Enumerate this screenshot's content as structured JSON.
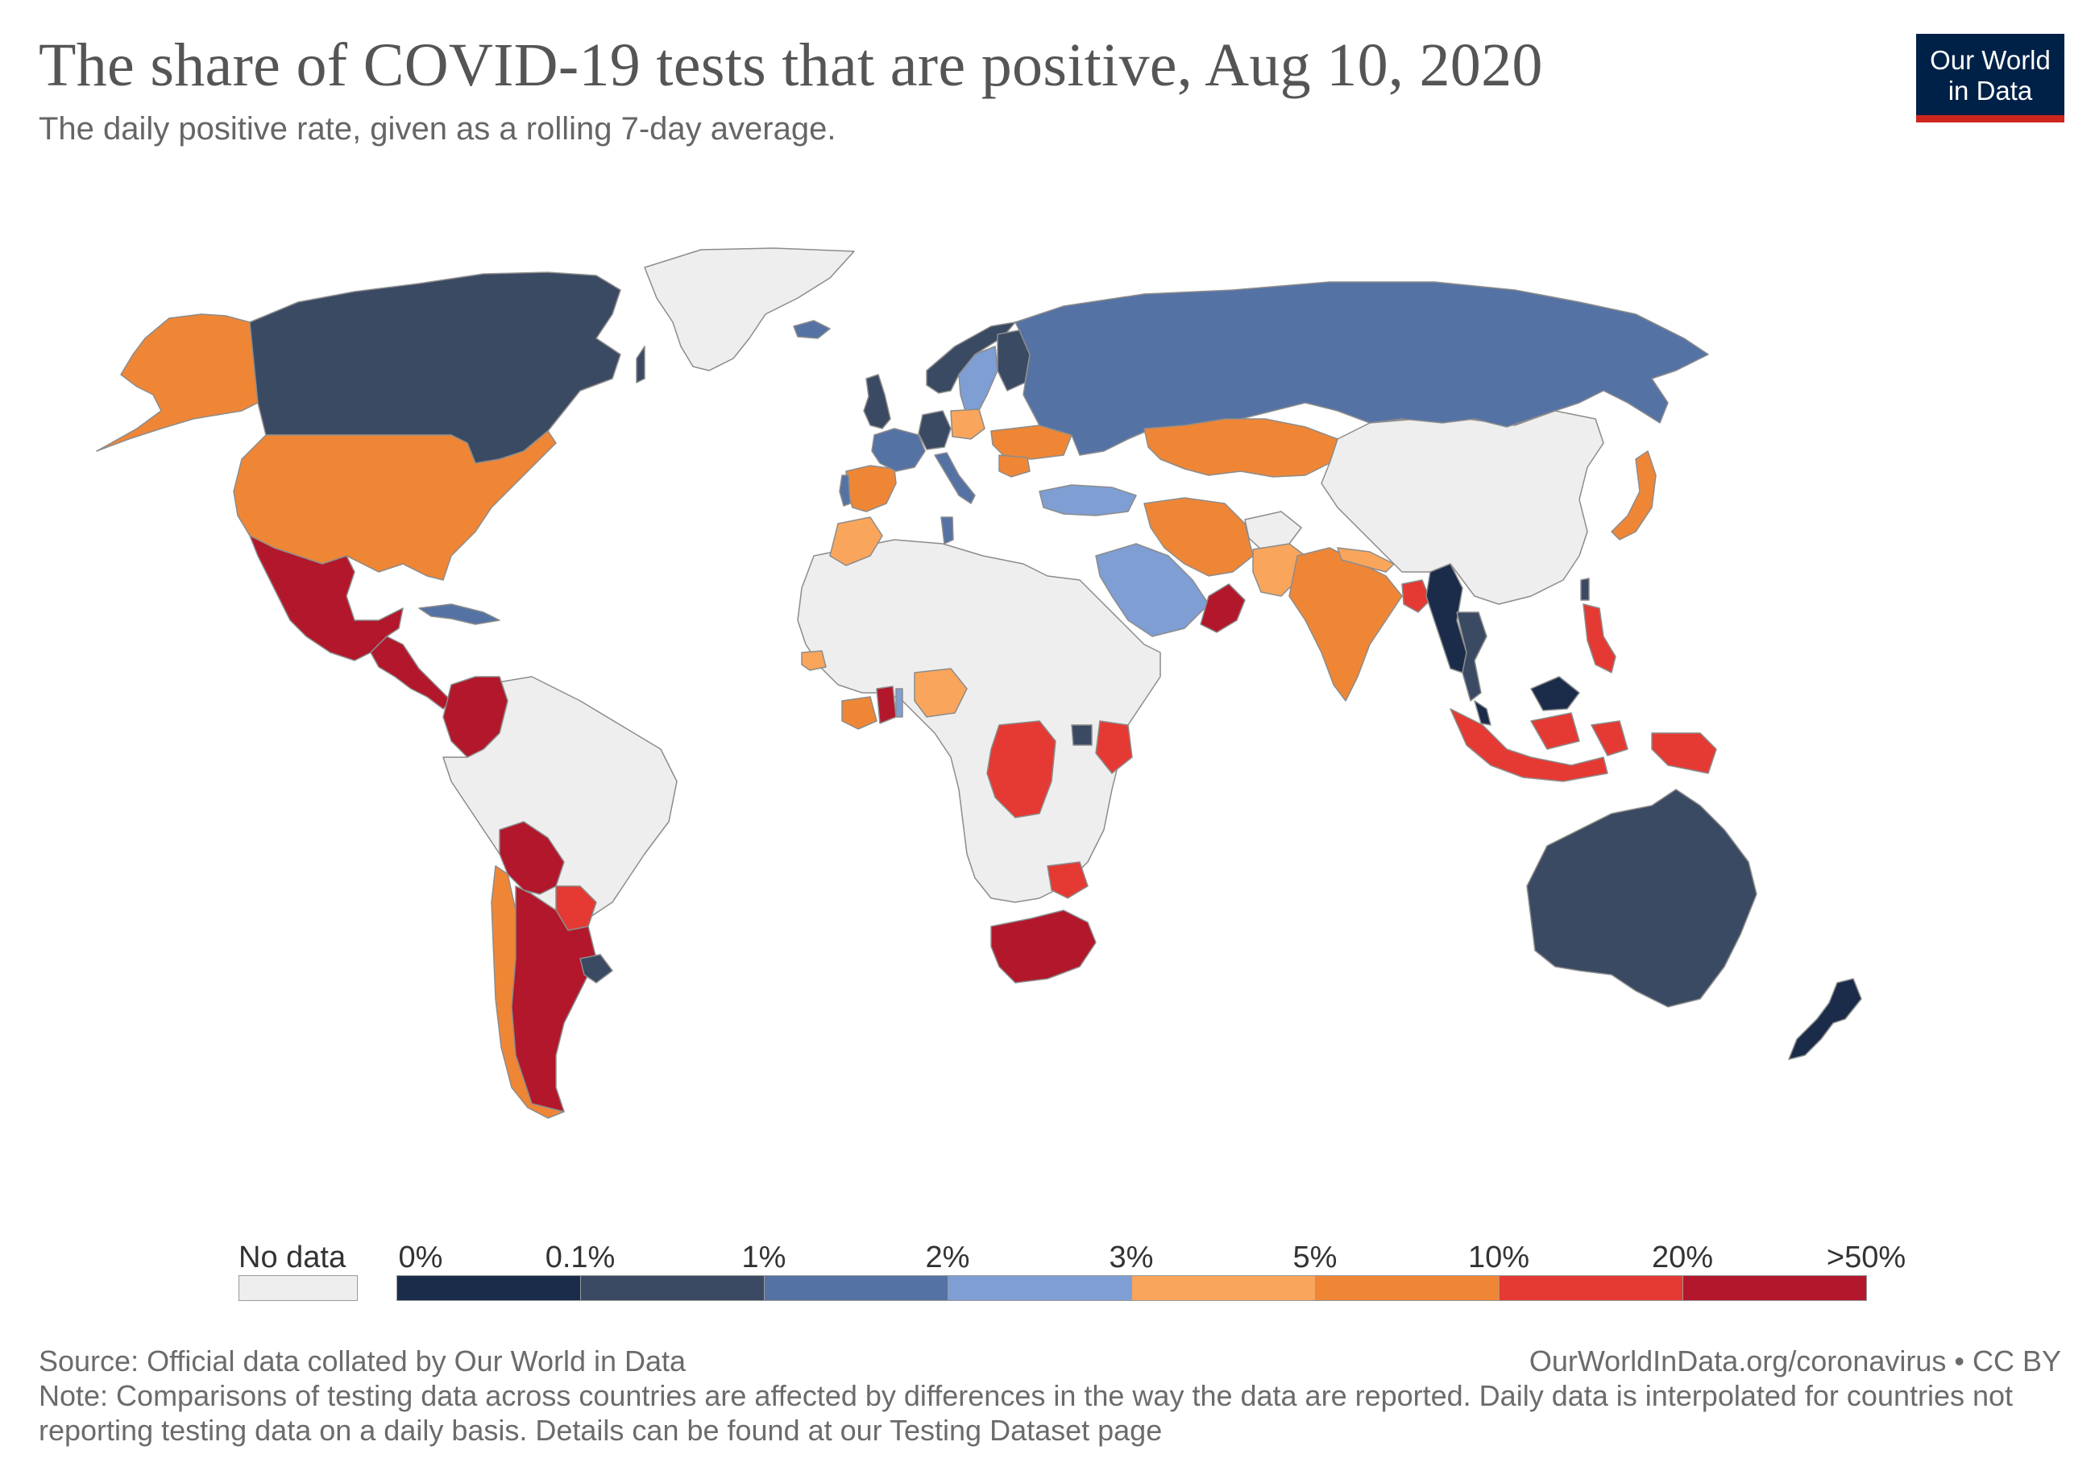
{
  "title": "The share of COVID-19 tests that are positive, Aug 10, 2020",
  "subtitle": "The daily positive rate, given as a rolling 7-day average.",
  "logo": {
    "line1": "Our World",
    "line2": "in Data"
  },
  "colors": {
    "no_data": "#eeeeee",
    "bins": [
      "#1b2c4a",
      "#3b4a63",
      "#5572a4",
      "#7e9ed4",
      "#f9a55b",
      "#ef8636",
      "#e43a33",
      "#b2172b"
    ],
    "border": "#9a9a9a",
    "logo_bg": "#002147",
    "logo_accent": "#ce261e"
  },
  "legend": {
    "no_data_label": "No data",
    "tick_labels": [
      "0%",
      "0.1%",
      "1%",
      "2%",
      "3%",
      "5%",
      "10%",
      "20%",
      ">50%"
    ]
  },
  "map": {
    "projection": "world",
    "regions": [
      {
        "name": "Greenland",
        "bin": null
      },
      {
        "name": "Canada",
        "bin": 1
      },
      {
        "name": "Alaska (United States)",
        "bin": 5
      },
      {
        "name": "United States",
        "bin": 5
      },
      {
        "name": "Mexico",
        "bin": 7
      },
      {
        "name": "Central America",
        "bin": 7
      },
      {
        "name": "Cuba",
        "bin": 2
      },
      {
        "name": "Colombia",
        "bin": 7
      },
      {
        "name": "South America (other)",
        "bin": null
      },
      {
        "name": "Bolivia",
        "bin": 7
      },
      {
        "name": "Paraguay",
        "bin": 6
      },
      {
        "name": "Chile",
        "bin": 5
      },
      {
        "name": "Argentina",
        "bin": 7
      },
      {
        "name": "Uruguay",
        "bin": 1
      },
      {
        "name": "Iceland",
        "bin": 2
      },
      {
        "name": "United Kingdom",
        "bin": 1
      },
      {
        "name": "Norway",
        "bin": 1
      },
      {
        "name": "Sweden",
        "bin": 3
      },
      {
        "name": "Finland",
        "bin": 1
      },
      {
        "name": "Spain",
        "bin": 5
      },
      {
        "name": "Portugal",
        "bin": 2
      },
      {
        "name": "France",
        "bin": 2
      },
      {
        "name": "Germany",
        "bin": 1
      },
      {
        "name": "Poland",
        "bin": 4
      },
      {
        "name": "Italy",
        "bin": 2
      },
      {
        "name": "Ukraine",
        "bin": 5
      },
      {
        "name": "Romania",
        "bin": 5
      },
      {
        "name": "Russia",
        "bin": 2
      },
      {
        "name": "Kazakhstan",
        "bin": 5
      },
      {
        "name": "Turkey",
        "bin": 3
      },
      {
        "name": "Morocco",
        "bin": 4
      },
      {
        "name": "Tunisia",
        "bin": 2
      },
      {
        "name": "Saudi Arabia",
        "bin": 3
      },
      {
        "name": "Iran",
        "bin": 5
      },
      {
        "name": "Oman",
        "bin": 7
      },
      {
        "name": "Afghanistan",
        "bin": null
      },
      {
        "name": "Pakistan",
        "bin": 4
      },
      {
        "name": "India",
        "bin": 5
      },
      {
        "name": "Nepal",
        "bin": 4
      },
      {
        "name": "Bangladesh",
        "bin": 6
      },
      {
        "name": "Myanmar",
        "bin": 0
      },
      {
        "name": "Thailand",
        "bin": 1
      },
      {
        "name": "Malaysia",
        "bin": 0
      },
      {
        "name": "Philippines",
        "bin": 6
      },
      {
        "name": "Indonesia",
        "bin": 6
      },
      {
        "name": "China",
        "bin": null
      },
      {
        "name": "Taiwan",
        "bin": 1
      },
      {
        "name": "Japan",
        "bin": 5
      },
      {
        "name": "Australia",
        "bin": 1
      },
      {
        "name": "New Zealand",
        "bin": 0
      },
      {
        "name": "Africa (other)",
        "bin": null
      },
      {
        "name": "Senegal",
        "bin": 4
      },
      {
        "name": "Cote d'Ivoire",
        "bin": 5
      },
      {
        "name": "Ghana",
        "bin": 7
      },
      {
        "name": "Togo",
        "bin": 3
      },
      {
        "name": "Nigeria",
        "bin": 4
      },
      {
        "name": "Democratic Republic of Congo",
        "bin": 6
      },
      {
        "name": "Uganda",
        "bin": 1
      },
      {
        "name": "Kenya",
        "bin": 6
      },
      {
        "name": "Zimbabwe",
        "bin": 6
      },
      {
        "name": "South Africa",
        "bin": 7
      }
    ]
  },
  "footer": {
    "source": "Source: Official data collated by Our World in Data",
    "url": "OurWorldInData.org/coronavirus • CC BY",
    "note": "Note: Comparisons of testing data across countries are affected by differences in the way the data are reported. Daily data is interpolated for countries not reporting testing data on a daily basis. Details can be found at our Testing Dataset page"
  }
}
